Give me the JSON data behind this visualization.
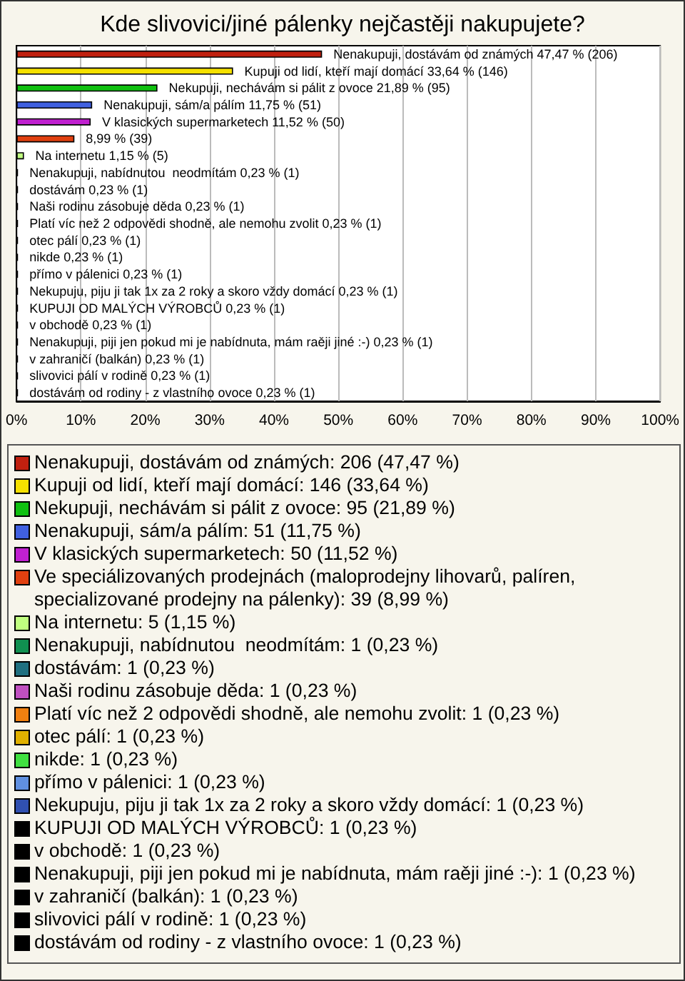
{
  "chart_data": {
    "type": "bar",
    "orientation": "horizontal",
    "title": "Kde slivovici/jiné pálenky nejčastěji nakupujete?",
    "categories": [
      null,
      null,
      null,
      null,
      null,
      null,
      null,
      null,
      null,
      null,
      null,
      null,
      null,
      null,
      null,
      null,
      null,
      null,
      null,
      null,
      null
    ],
    "values": [
      47.47,
      33.64,
      21.89,
      11.75,
      11.52,
      8.99,
      1.15,
      0.23,
      0.23,
      0.23,
      0.23,
      0.23,
      0.23,
      0.23,
      0.23,
      0.23,
      0.23,
      0.23,
      0.23,
      0.23,
      0.23
    ],
    "colors": [
      "#c0200f",
      "#f5e000",
      "#10c010",
      "#4060e0",
      "#c020d0",
      "#e04010",
      "#c0ff80",
      "#109050",
      "#207080",
      "#c050c0",
      "#f08010",
      "#e0b000",
      "#40e040",
      "#6090e0",
      "#3050b0",
      "#000000",
      "#000000",
      "#000000",
      "#000000",
      "#000000",
      "#000000"
    ],
    "value_labels": [
      "Nenakupuji, dostávám od známých 47,47 % (206)",
      "Kupuji od lidí, kteří mají domácí 33,64 % (146)",
      "Nekupuji, nechávám si pálit z ovoce 21,89 % (95)",
      "Nenakupuji, sám/a pálím 11,75 % (51)",
      "V klasických supermarketech 11,52 % (50)",
      "8,99 % (39)",
      "Na internetu 1,15 % (5)",
      "Nenakupuji, nabídnutou  neodmítám 0,23 % (1)",
      "dostávám 0,23 % (1)",
      "Naši rodinu zásobuje děda 0,23 % (1)",
      "Platí víc než 2 odpovědi shodně, ale nemohu zvolit 0,23 % (1)",
      "otec pálí 0,23 % (1)",
      "nikde 0,23 % (1)",
      "přímo v pálenici 0,23 % (1)",
      "Nekupuju, piju ji tak 1x za 2 roky a skoro vždy domácí 0,23 % (1)",
      "KUPUJI OD MALÝCH VÝROBCŮ 0,23 % (1)",
      "v obchodě 0,23 % (1)",
      "Nenakupuji, piji jen pokud mi je nabídnuta, mám raěji jiné :-) 0,23 % (1)",
      "v zahraničí (balkán) 0,23 % (1)",
      "slivovici pálí v rodině 0,23 % (1)",
      "dostávám od rodiny - z vlastního ovoce 0,23 % (1)"
    ],
    "annotations": [
      "Nenakupuji, dostávám od známých: 206 (47,47 %)",
      "Kupuji od lidí, kteří mají domácí: 146 (33,64 %)",
      "Nekupuji, nechávám si pálit z ovoce: 95 (21,89 %)",
      "Nenakupuji, sám/a pálím: 51 (11,75 %)",
      "V klasických supermarketech: 50 (11,52 %)",
      "Ve speciálizovaných prodejnách (maloprodejny lihovarů, palíren, specializované prodejny na pálenky): 39 (8,99 %)",
      "Na internetu: 5 (1,15 %)",
      "Nenakupuji, nabídnutou  neodmítám: 1 (0,23 %)",
      "dostávám: 1 (0,23 %)",
      "Naši rodinu zásobuje děda: 1 (0,23 %)",
      "Platí víc než 2 odpovědi shodně, ale nemohu zvolit: 1 (0,23 %)",
      "otec pálí: 1 (0,23 %)",
      "nikde: 1 (0,23 %)",
      "přímo v pálenici: 1 (0,23 %)",
      "Nekupuju, piju ji tak 1x za 2 roky a skoro vždy domácí: 1 (0,23 %)",
      "KUPUJI OD MALÝCH VÝROBCŮ: 1 (0,23 %)",
      "v obchodě: 1 (0,23 %)",
      "Nenakupuji, piji jen pokud mi je nabídnuta, mám raěji jiné :-): 1 (0,23 %)",
      "v zahraničí (balkán): 1 (0,23 %)",
      "slivovici pálí v rodině: 1 (0,23 %)",
      "dostávám od rodiny - z vlastního ovoce: 1 (0,23 %)"
    ],
    "xlim": [
      0,
      100
    ],
    "xticks": [
      {
        "value": 0,
        "label": "0%"
      },
      {
        "value": 10,
        "label": "10%"
      },
      {
        "value": 20,
        "label": "20%"
      },
      {
        "value": 30,
        "label": "30%"
      },
      {
        "value": 40,
        "label": "40%"
      },
      {
        "value": 50,
        "label": "50%"
      },
      {
        "value": 60,
        "label": "60%"
      },
      {
        "value": 70,
        "label": "70%"
      },
      {
        "value": 80,
        "label": "80%"
      },
      {
        "value": 90,
        "label": "90%"
      },
      {
        "value": 100,
        "label": "100%"
      }
    ],
    "grid": "x",
    "tick_labels": "x"
  }
}
